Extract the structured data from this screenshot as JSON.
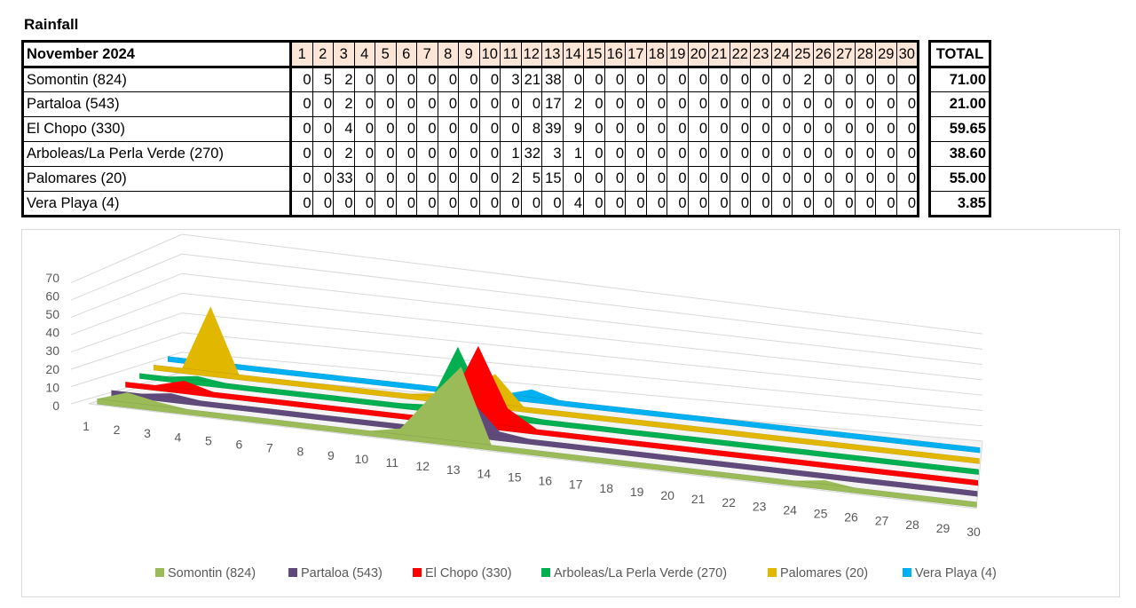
{
  "title": "Rainfall",
  "table": {
    "header_label": "November 2024",
    "total_label": "TOTAL",
    "days": [
      "1",
      "2",
      "3",
      "4",
      "5",
      "6",
      "7",
      "8",
      "9",
      "10",
      "11",
      "12",
      "13",
      "14",
      "15",
      "16",
      "17",
      "18",
      "19",
      "20",
      "21",
      "22",
      "23",
      "24",
      "25",
      "26",
      "27",
      "28",
      "29",
      "30"
    ],
    "rows": [
      {
        "station": "Somontin (824)",
        "values": [
          0,
          5,
          2,
          0,
          0,
          0,
          0,
          0,
          0,
          0,
          3,
          21,
          38,
          0,
          0,
          0,
          0,
          0,
          0,
          0,
          0,
          0,
          0,
          0,
          2,
          0,
          0,
          0,
          0,
          0
        ],
        "total": "71.00"
      },
      {
        "station": "Partaloa (543)",
        "values": [
          0,
          0,
          2,
          0,
          0,
          0,
          0,
          0,
          0,
          0,
          0,
          0,
          17,
          2,
          0,
          0,
          0,
          0,
          0,
          0,
          0,
          0,
          0,
          0,
          0,
          0,
          0,
          0,
          0,
          0
        ],
        "total": "21.00"
      },
      {
        "station": "El Chopo (330)",
        "values": [
          0,
          0,
          4,
          0,
          0,
          0,
          0,
          0,
          0,
          0,
          0,
          8,
          39,
          9,
          0,
          0,
          0,
          0,
          0,
          0,
          0,
          0,
          0,
          0,
          0,
          0,
          0,
          0,
          0,
          0
        ],
        "total": "59.65"
      },
      {
        "station": "Arboleas/La Perla Verde (270)",
        "values": [
          0,
          0,
          2,
          0,
          0,
          0,
          0,
          0,
          0,
          0,
          1,
          32,
          3,
          1,
          0,
          0,
          0,
          0,
          0,
          0,
          0,
          0,
          0,
          0,
          0,
          0,
          0,
          0,
          0,
          0
        ],
        "total": "38.60"
      },
      {
        "station": "Palomares (20)",
        "values": [
          0,
          0,
          33,
          0,
          0,
          0,
          0,
          0,
          0,
          0,
          2,
          5,
          15,
          0,
          0,
          0,
          0,
          0,
          0,
          0,
          0,
          0,
          0,
          0,
          0,
          0,
          0,
          0,
          0,
          0
        ],
        "total": "55.00"
      },
      {
        "station": "Vera Playa (4)",
        "values": [
          0,
          0,
          0,
          0,
          0,
          0,
          0,
          0,
          0,
          0,
          0,
          0,
          0,
          4,
          0,
          0,
          0,
          0,
          0,
          0,
          0,
          0,
          0,
          0,
          0,
          0,
          0,
          0,
          0,
          0
        ],
        "total": "3.85"
      }
    ]
  },
  "chart_data": {
    "type": "area",
    "three_d": true,
    "categories": [
      "1",
      "2",
      "3",
      "4",
      "5",
      "6",
      "7",
      "8",
      "9",
      "10",
      "11",
      "12",
      "13",
      "14",
      "15",
      "16",
      "17",
      "18",
      "19",
      "20",
      "21",
      "22",
      "23",
      "24",
      "25",
      "26",
      "27",
      "28",
      "29",
      "30"
    ],
    "y_ticks": [
      "0",
      "10",
      "20",
      "30",
      "40",
      "50",
      "60",
      "70"
    ],
    "ylim": [
      0,
      70
    ],
    "grid": true,
    "legend_position": "bottom",
    "series": [
      {
        "name": "Somontin (824)",
        "color": "#9bbb59",
        "values": [
          0,
          5,
          2,
          0,
          0,
          0,
          0,
          0,
          0,
          0,
          3,
          21,
          38,
          0,
          0,
          0,
          0,
          0,
          0,
          0,
          0,
          0,
          0,
          0,
          2,
          0,
          0,
          0,
          0,
          0
        ]
      },
      {
        "name": "Partaloa (543)",
        "color": "#604a7b",
        "values": [
          0,
          0,
          2,
          0,
          0,
          0,
          0,
          0,
          0,
          0,
          0,
          0,
          17,
          2,
          0,
          0,
          0,
          0,
          0,
          0,
          0,
          0,
          0,
          0,
          0,
          0,
          0,
          0,
          0,
          0
        ]
      },
      {
        "name": "El Chopo (330)",
        "color": "#ff0000",
        "values": [
          0,
          0,
          4,
          0,
          0,
          0,
          0,
          0,
          0,
          0,
          0,
          8,
          39,
          9,
          0,
          0,
          0,
          0,
          0,
          0,
          0,
          0,
          0,
          0,
          0,
          0,
          0,
          0,
          0,
          0
        ]
      },
      {
        "name": "Arboleas/La Perla Verde (270)",
        "color": "#00b050",
        "values": [
          0,
          0,
          2,
          0,
          0,
          0,
          0,
          0,
          0,
          0,
          1,
          32,
          3,
          1,
          0,
          0,
          0,
          0,
          0,
          0,
          0,
          0,
          0,
          0,
          0,
          0,
          0,
          0,
          0,
          0
        ]
      },
      {
        "name": "Palomares (20)",
        "color": "#e2b700",
        "values": [
          0,
          0,
          33,
          0,
          0,
          0,
          0,
          0,
          0,
          0,
          2,
          5,
          15,
          0,
          0,
          0,
          0,
          0,
          0,
          0,
          0,
          0,
          0,
          0,
          0,
          0,
          0,
          0,
          0,
          0
        ]
      },
      {
        "name": "Vera Playa (4)",
        "color": "#00b0f0",
        "values": [
          0,
          0,
          0,
          0,
          0,
          0,
          0,
          0,
          0,
          0,
          0,
          0,
          0,
          4,
          0,
          0,
          0,
          0,
          0,
          0,
          0,
          0,
          0,
          0,
          0,
          0,
          0,
          0,
          0,
          0
        ]
      }
    ]
  }
}
